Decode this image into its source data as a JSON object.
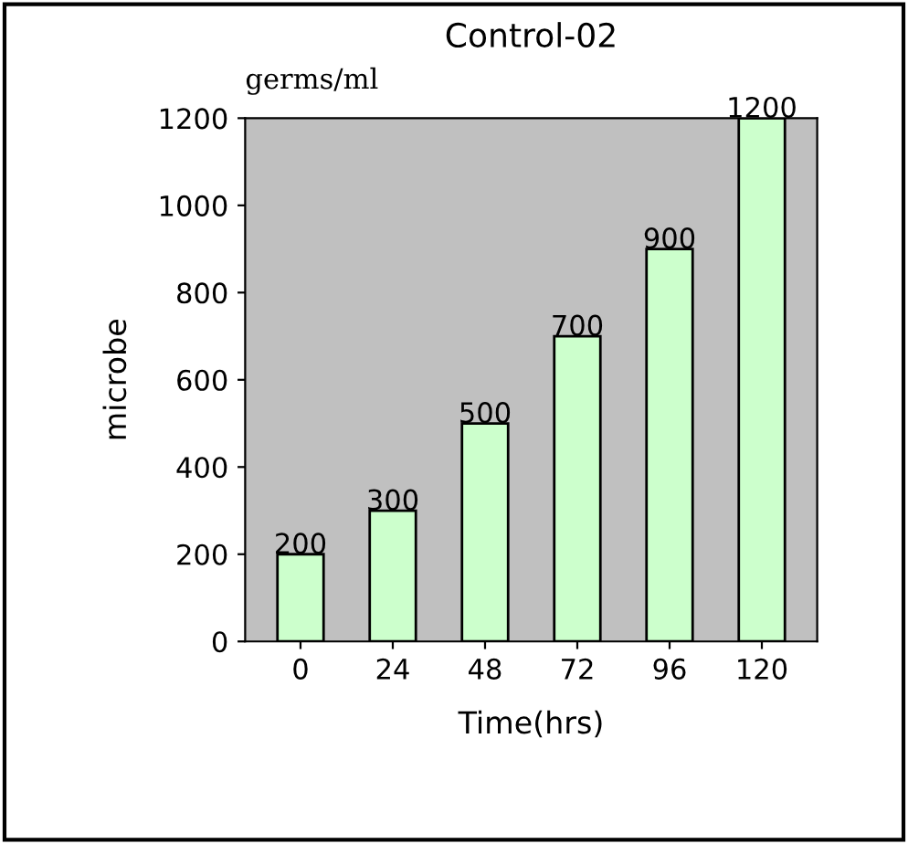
{
  "chart_data": {
    "type": "bar",
    "title": "Control-02",
    "annotations": [
      "germs/ml"
    ],
    "xlabel": "Time(hrs)",
    "ylabel": "microbe",
    "categories": [
      "0",
      "24",
      "48",
      "72",
      "96",
      "120"
    ],
    "values": [
      200,
      300,
      500,
      700,
      900,
      1200
    ],
    "color": "#ccffcc",
    "ylim": [
      0,
      1200
    ],
    "yticks": [
      0,
      200,
      400,
      600,
      800,
      1000,
      1200
    ],
    "grid": false,
    "data_labels": true
  }
}
